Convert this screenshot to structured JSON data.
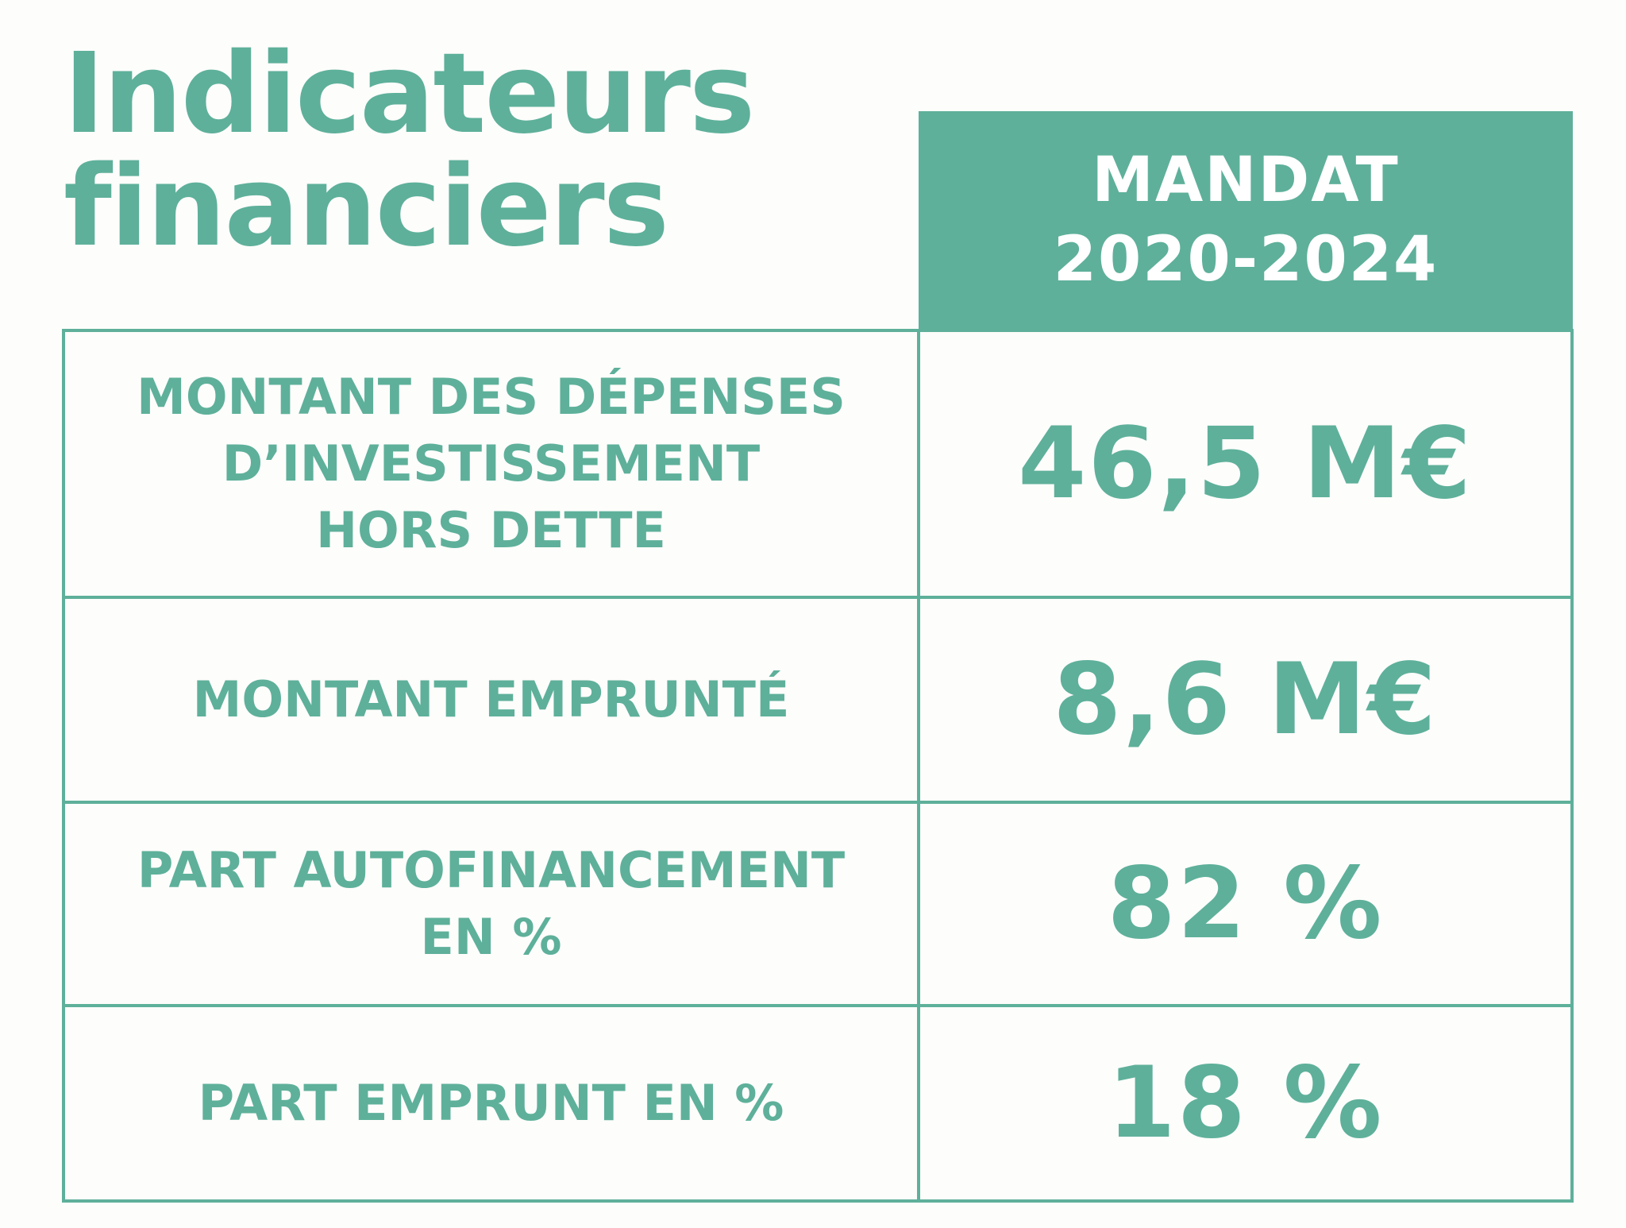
{
  "title": {
    "line1": "Indicateurs",
    "line2": "financiers"
  },
  "column_header": {
    "line1": "MANDAT",
    "line2": "2020-2024"
  },
  "rows": [
    {
      "label": "MONTANT DES DÉPENSES\nD’INVESTISSEMENT\nHORS DETTE",
      "value": "46,5 M€"
    },
    {
      "label": "MONTANT EMPRUNTÉ",
      "value": "8,6 M€"
    },
    {
      "label": "PART AUTOFINANCEMENT\nEN %",
      "value": "82 %"
    },
    {
      "label": "PART EMPRUNT EN %",
      "value": "18 %"
    }
  ],
  "colors": {
    "accent": "#5eb09a",
    "background": "#fdfdfb",
    "header_text": "#ffffff"
  }
}
